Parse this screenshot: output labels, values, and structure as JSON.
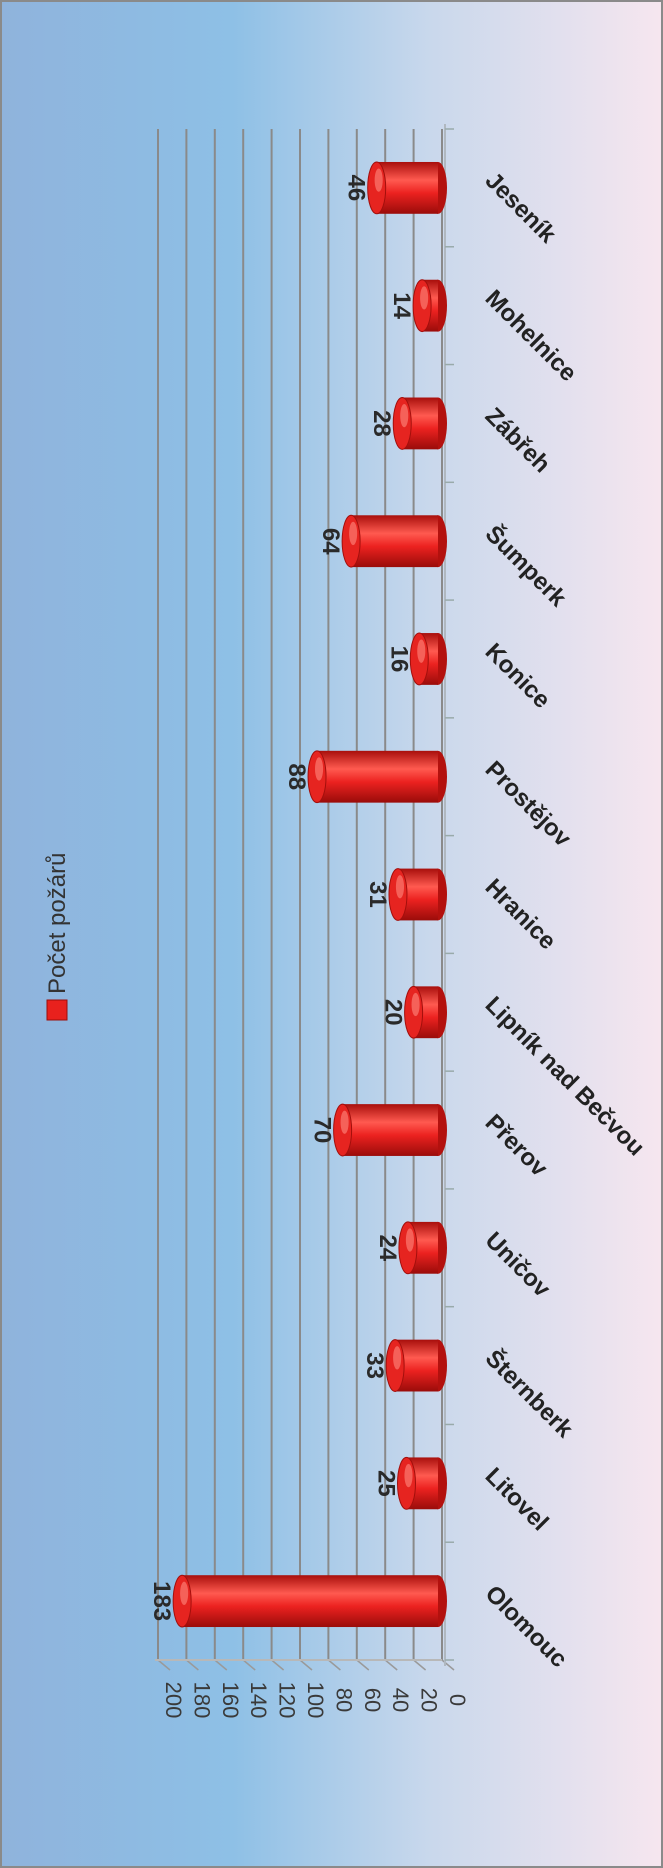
{
  "chart_data": {
    "type": "bar",
    "orientation": "vertical cylinders, image rotated 90° clockwise",
    "categories": [
      "Olomouc",
      "Litovel",
      "Šternberk",
      "Uničov",
      "Přerov",
      "Lipník nad Bečvou",
      "Hranice",
      "Prostějov",
      "Konice",
      "Šumperk",
      "Zábřeh",
      "Mohelnice",
      "Jeseník"
    ],
    "series": [
      {
        "name": "Počet požárů",
        "values": [
          183,
          25,
          33,
          24,
          70,
          20,
          31,
          88,
          16,
          64,
          28,
          14,
          46
        ]
      }
    ],
    "ylim": [
      0,
      200
    ],
    "yticks": [
      0,
      20,
      40,
      60,
      80,
      100,
      120,
      140,
      160,
      180,
      200
    ],
    "grid": true,
    "legend": "left-middle",
    "colors": {
      "bar": "#e8211d",
      "bar_dark": "#9c0d0b",
      "bar_light": "#ff6b62",
      "grid": "#8a8a8a"
    }
  }
}
